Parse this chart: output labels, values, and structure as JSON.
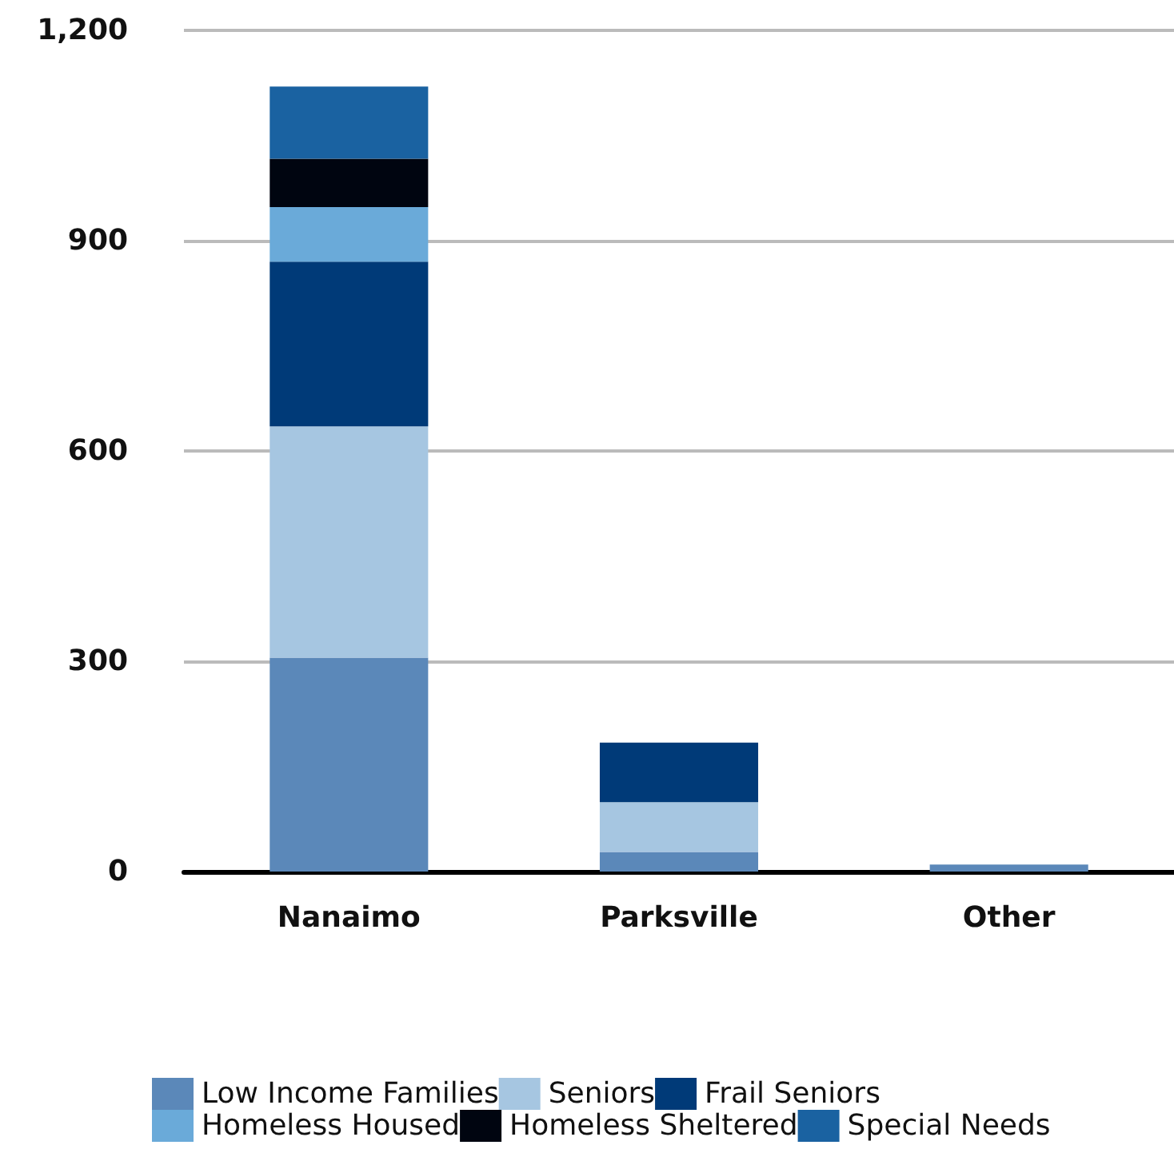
{
  "chart_data": {
    "type": "bar",
    "stacked": true,
    "categories": [
      "Nanaimo",
      "Parksville",
      "Other"
    ],
    "series": [
      {
        "name": "Low Income Families",
        "color": "#5b88b9",
        "values": [
          305,
          28,
          10
        ]
      },
      {
        "name": "Seniors",
        "color": "#a6c6e1",
        "values": [
          330,
          71,
          null
        ]
      },
      {
        "name": "Frail Seniors",
        "color": "#003a78",
        "values": [
          235,
          85,
          null
        ]
      },
      {
        "name": "Homeless Housed",
        "color": "#6aaad9",
        "values": [
          78,
          null,
          null
        ]
      },
      {
        "name": "Homeless Sheltered",
        "color": "#000510",
        "values": [
          69,
          null,
          null
        ]
      },
      {
        "name": "Special Needs",
        "color": "#1a62a1",
        "values": [
          103,
          null,
          null
        ]
      }
    ],
    "ylim": [
      0,
      1200
    ],
    "yticks": [
      0,
      {
        "value": 300,
        "label": "300"
      },
      {
        "value": 600,
        "label": "600"
      },
      {
        "value": 900,
        "label": "900"
      },
      {
        "value": 1200,
        "label": "1,200"
      }
    ],
    "grid": "y",
    "legend": "bottom"
  }
}
